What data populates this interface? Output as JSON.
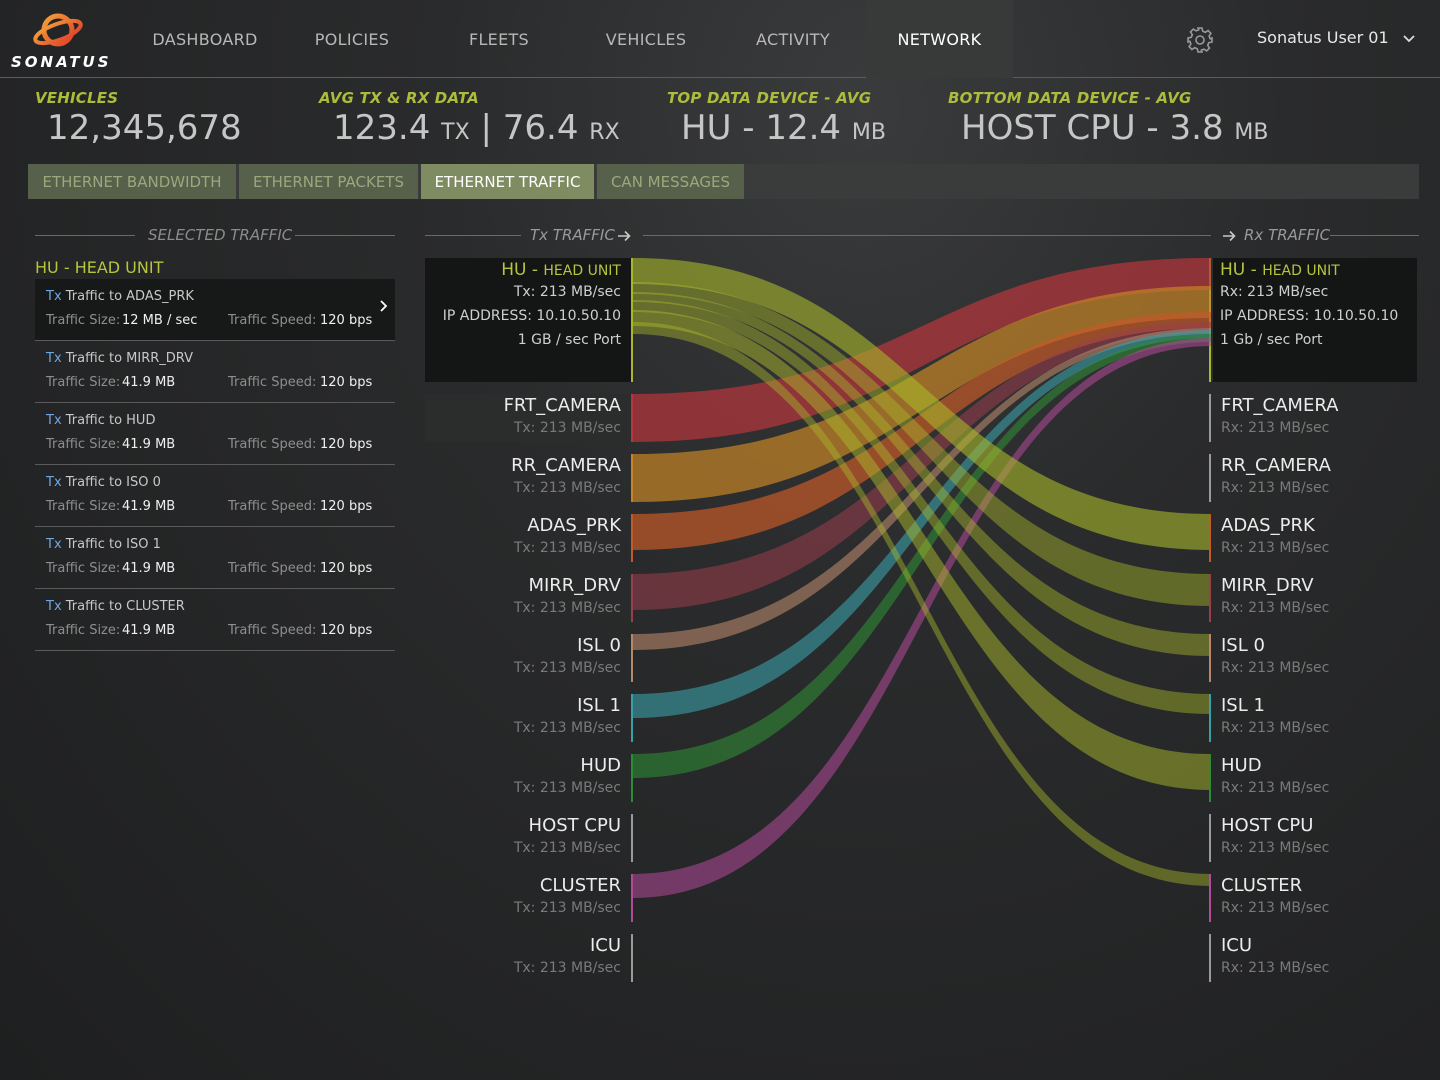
{
  "brand": {
    "name": "SONATUS"
  },
  "nav": {
    "items": [
      "DASHBOARD",
      "POLICIES",
      "FLEETS",
      "VEHICLES",
      "ACTIVITY",
      "NETWORK"
    ],
    "active": "NETWORK",
    "user": "Sonatus User 01"
  },
  "stats": {
    "vehicles": {
      "label": "VEHICLES",
      "value": "12,345,678"
    },
    "avg_data": {
      "label": "AVG TX & RX DATA",
      "tx_value": "123.4",
      "tx_unit": "TX",
      "sep": "|",
      "rx_value": "76.4",
      "rx_unit": "RX"
    },
    "top_device": {
      "label": "TOP DATA DEVICE - AVG",
      "value": "HU - 12.4",
      "unit": "MB"
    },
    "bottom_device": {
      "label": "BOTTOM DATA DEVICE - AVG",
      "value": "HOST CPU - 3.8",
      "unit": "MB"
    }
  },
  "tabs": [
    "ETHERNET BANDWIDTH",
    "ETHERNET PACKETS",
    "ETHERNET TRAFFIC",
    "CAN MESSAGES"
  ],
  "active_tab": "ETHERNET TRAFFIC",
  "selected_traffic": {
    "title": "SELECTED TRAFFIC",
    "group": "HU - HEAD UNIT",
    "size_label": "Traffic Size:",
    "speed_label": "Traffic Speed:",
    "items": [
      {
        "tx": "Tx",
        "target": "Traffic to ADAS_PRK",
        "size": "12 MB / sec",
        "speed": "120 bps"
      },
      {
        "tx": "Tx",
        "target": "Traffic to MIRR_DRV",
        "size": "41.9 MB",
        "speed": "120 bps"
      },
      {
        "tx": "Tx",
        "target": "Traffic to HUD",
        "size": "41.9 MB",
        "speed": "120 bps"
      },
      {
        "tx": "Tx",
        "target": "Traffic to ISO 0",
        "size": "41.9 MB",
        "speed": "120 bps"
      },
      {
        "tx": "Tx",
        "target": "Traffic to ISO 1",
        "size": "41.9 MB",
        "speed": "120 bps"
      },
      {
        "tx": "Tx",
        "target": "Traffic to CLUSTER",
        "size": "41.9 MB",
        "speed": "120 bps"
      }
    ]
  },
  "traffic": {
    "tx_title": "Tx TRAFFIC",
    "rx_title": "Rx TRAFFIC",
    "hu": {
      "code": "HU",
      "sep": " - ",
      "name": "HEAD UNIT",
      "tx": "Tx: 213 MB/sec",
      "rx": "Rx: 213 MB/sec",
      "ip": "IP ADDRESS: 10.10.50.10",
      "tx_port": "1 GB / sec Port",
      "rx_port": "1 Gb / sec Port"
    },
    "nodes": [
      {
        "name": "FRT_CAMERA",
        "tx": "Tx: 213 MB/sec",
        "rx": "Rx: 213 MB/sec",
        "color": "#b8363c"
      },
      {
        "name": "RR_CAMERA",
        "tx": "Tx: 213 MB/sec",
        "rx": "Rx: 213 MB/sec",
        "color": "#c68426"
      },
      {
        "name": "ADAS_PRK",
        "tx": "Tx: 213 MB/sec",
        "rx": "Rx: 213 MB/sec",
        "color": "#c45a28"
      },
      {
        "name": "MIRR_DRV",
        "tx": "Tx: 213 MB/sec",
        "rx": "Rx: 213 MB/sec",
        "color": "#9a3e4c"
      },
      {
        "name": "ISL 0",
        "tx": "Tx: 213 MB/sec",
        "rx": "Rx: 213 MB/sec",
        "color": "#b8876a"
      },
      {
        "name": "ISL 1",
        "tx": "Tx: 213 MB/sec",
        "rx": "Rx: 213 MB/sec",
        "color": "#3aa0a8"
      },
      {
        "name": "HUD",
        "tx": "Tx: 213 MB/sec",
        "rx": "Rx: 213 MB/sec",
        "color": "#2f8a36"
      },
      {
        "name": "HOST CPU",
        "tx": "Tx: 213 MB/sec",
        "rx": "Rx: 213 MB/sec",
        "color": "#9a9a9a"
      },
      {
        "name": "CLUSTER",
        "tx": "Tx: 213 MB/sec",
        "rx": "Rx: 213 MB/sec",
        "color": "#b44a9a"
      },
      {
        "name": "ICU",
        "tx": "Tx: 213 MB/sec",
        "rx": "Rx: 213 MB/sec",
        "color": "#9a9a9a"
      }
    ],
    "colors": {
      "hu": "#a9b82a",
      "accent": "#b7c53e"
    }
  }
}
